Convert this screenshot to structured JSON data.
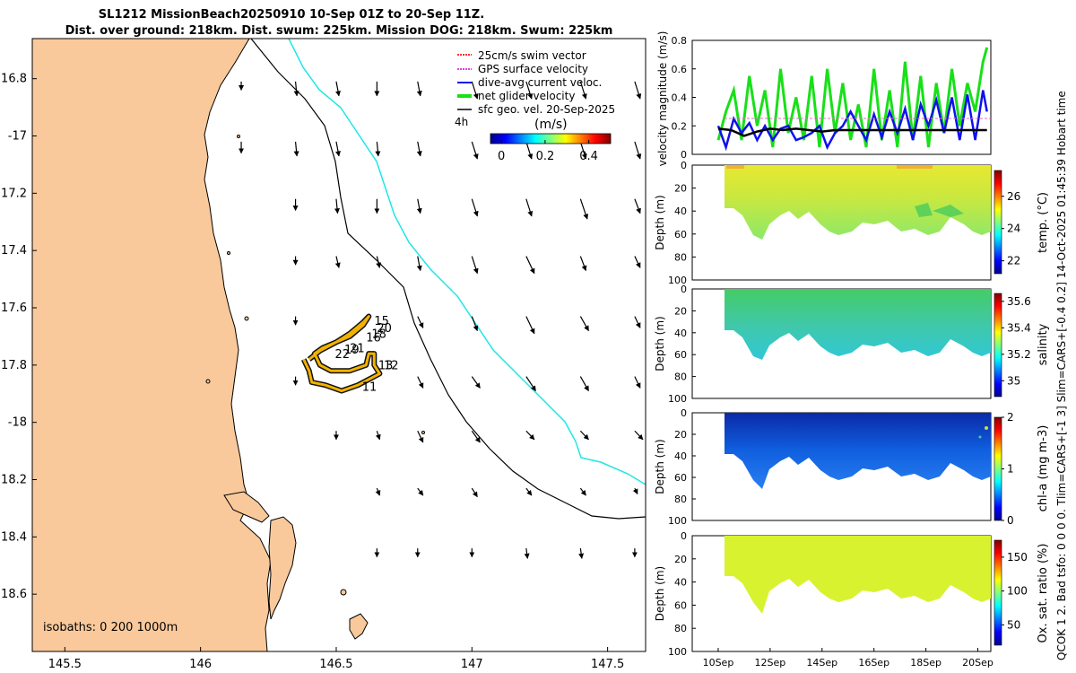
{
  "header": {
    "title_line1": "SL1212 MissionBeach20250910 10-Sep 01Z to 20-Sep 11Z.",
    "title_line2": "Dist. over ground: 218km. Dist. swum: 225km. Mission DOG: 218km. Swum: 225km"
  },
  "side_note": "QCOK 1  2. Bad tsfo: 0  0  0  0. Tlim=CARS+[-1 3] Slim=CARS+[-0.4 0.2] 14-Oct-2025 01:45:39 Hobart time",
  "colors": {
    "land": "#f9c99b",
    "coast": "#000000",
    "isobath_1000": "#20e6e6",
    "isobath_200": "#000000",
    "track_outer": "#111111",
    "track_inner": "#f2b200",
    "swim_vector": "#ff3030",
    "gps_velocity": "#e040e0",
    "current": "#1010ee",
    "net_velocity": "#18e018",
    "geo_velocity": "#000000",
    "mean_speed": "#000000"
  },
  "chart_data": [
    {
      "type": "map",
      "panel": "map",
      "xlabel_ticks": [
        "145.5",
        "146",
        "146.5",
        "147",
        "147.5"
      ],
      "x_tick_values": [
        145.5,
        146.0,
        146.5,
        147.0,
        147.5
      ],
      "ylabel_ticks": [
        "16.8",
        "-17",
        "17.2",
        "17.4",
        "17.6",
        "17.8",
        "-18",
        "18.2",
        "18.4",
        "18.6"
      ],
      "y_tick_values": [
        -16.8,
        -17.0,
        -17.2,
        -17.4,
        -17.6,
        -17.8,
        -18.0,
        -18.2,
        -18.4,
        -18.6
      ],
      "xlim": [
        145.38,
        147.64
      ],
      "ylim": [
        -18.8,
        -16.66
      ],
      "legend": [
        {
          "key": "swim",
          "label": "25cm/s swim vector"
        },
        {
          "key": "gps",
          "label": "GPS surface velocity"
        },
        {
          "key": "current",
          "label": "dive-avg current veloc."
        },
        {
          "key": "net",
          "label": "net glider velocity"
        },
        {
          "key": "geo",
          "label": "sfc geo. vel. 20-Sep-2025"
        }
      ],
      "time_label": "4h",
      "colorbar": {
        "label": "(m/s)",
        "ticks": [
          "0",
          "0.2",
          "0.4"
        ],
        "tick_values": [
          0,
          0.2,
          0.4
        ],
        "range": [
          -0.05,
          0.5
        ]
      },
      "isobath_label": "isobaths: 0   200  1000m",
      "track_day_labels": [
        {
          "text": "15",
          "lon": 146.64,
          "lat": -17.66
        },
        {
          "text": "20",
          "lon": 146.65,
          "lat": -17.685
        },
        {
          "text": "18",
          "lon": 146.63,
          "lat": -17.705
        },
        {
          "text": "16",
          "lon": 146.61,
          "lat": -17.718
        },
        {
          "text": "21",
          "lon": 146.55,
          "lat": -17.755
        },
        {
          "text": "19",
          "lon": 146.53,
          "lat": -17.76
        },
        {
          "text": "22",
          "lon": 146.495,
          "lat": -17.775
        },
        {
          "text": "13",
          "lon": 146.655,
          "lat": -17.815
        },
        {
          "text": "12",
          "lon": 146.675,
          "lat": -17.815
        },
        {
          "text": "11",
          "lon": 146.595,
          "lat": -17.89
        }
      ],
      "track": [
        [
          146.4,
          -17.78
        ],
        [
          146.44,
          -17.75
        ],
        [
          146.5,
          -17.72
        ],
        [
          146.55,
          -17.7
        ],
        [
          146.6,
          -17.66
        ],
        [
          146.62,
          -17.63
        ],
        [
          146.6,
          -17.65
        ],
        [
          146.55,
          -17.69
        ],
        [
          146.5,
          -17.72
        ],
        [
          146.45,
          -17.74
        ],
        [
          146.42,
          -17.76
        ],
        [
          146.44,
          -17.8
        ],
        [
          146.48,
          -17.82
        ],
        [
          146.55,
          -17.82
        ],
        [
          146.61,
          -17.8
        ],
        [
          146.62,
          -17.76
        ],
        [
          146.64,
          -17.76
        ],
        [
          146.64,
          -17.8
        ],
        [
          146.66,
          -17.83
        ],
        [
          146.62,
          -17.85
        ],
        [
          146.58,
          -17.87
        ],
        [
          146.52,
          -17.89
        ],
        [
          146.46,
          -17.87
        ],
        [
          146.41,
          -17.86
        ],
        [
          146.4,
          -17.82
        ],
        [
          146.38,
          -17.78
        ]
      ],
      "geo_vectors": [
        [
          146.15,
          -16.81,
          0.0,
          -0.03
        ],
        [
          146.35,
          -16.81,
          0.005,
          -0.05
        ],
        [
          146.5,
          -16.81,
          0.01,
          -0.05
        ],
        [
          146.65,
          -16.81,
          0.0,
          -0.05
        ],
        [
          146.8,
          -16.81,
          0.01,
          -0.05
        ],
        [
          147.0,
          -16.81,
          0.02,
          -0.06
        ],
        [
          147.2,
          -16.81,
          0.02,
          -0.06
        ],
        [
          147.4,
          -16.81,
          0.02,
          -0.06
        ],
        [
          147.6,
          -16.81,
          0.02,
          -0.06
        ],
        [
          146.15,
          -17.02,
          0.0,
          -0.04
        ],
        [
          146.35,
          -17.02,
          0.005,
          -0.05
        ],
        [
          146.5,
          -17.02,
          0.01,
          -0.05
        ],
        [
          146.65,
          -17.02,
          0.005,
          -0.05
        ],
        [
          146.8,
          -17.02,
          0.01,
          -0.05
        ],
        [
          147.0,
          -17.02,
          0.02,
          -0.06
        ],
        [
          147.2,
          -17.02,
          0.02,
          -0.06
        ],
        [
          147.4,
          -17.02,
          0.02,
          -0.06
        ],
        [
          147.6,
          -17.02,
          0.02,
          -0.06
        ],
        [
          146.35,
          -17.22,
          0.0,
          -0.04
        ],
        [
          146.5,
          -17.22,
          0.005,
          -0.05
        ],
        [
          146.65,
          -17.22,
          0.0,
          -0.05
        ],
        [
          146.8,
          -17.22,
          0.01,
          -0.05
        ],
        [
          147.0,
          -17.22,
          0.02,
          -0.06
        ],
        [
          147.2,
          -17.22,
          0.02,
          -0.06
        ],
        [
          147.4,
          -17.22,
          0.025,
          -0.07
        ],
        [
          147.6,
          -17.22,
          0.02,
          -0.05
        ],
        [
          146.35,
          -17.42,
          0.0,
          -0.03
        ],
        [
          146.5,
          -17.42,
          0.01,
          -0.04
        ],
        [
          146.65,
          -17.42,
          0.01,
          -0.04
        ],
        [
          146.8,
          -17.42,
          0.01,
          -0.05
        ],
        [
          147.0,
          -17.42,
          0.02,
          -0.06
        ],
        [
          147.2,
          -17.42,
          0.03,
          -0.06
        ],
        [
          147.4,
          -17.42,
          0.02,
          -0.05
        ],
        [
          147.6,
          -17.42,
          0.02,
          -0.04
        ],
        [
          146.35,
          -17.63,
          0.0,
          -0.03
        ],
        [
          146.8,
          -17.63,
          0.02,
          -0.04
        ],
        [
          147.0,
          -17.63,
          0.02,
          -0.05
        ],
        [
          147.2,
          -17.63,
          0.03,
          -0.06
        ],
        [
          147.4,
          -17.63,
          0.03,
          -0.05
        ],
        [
          147.6,
          -17.63,
          0.02,
          -0.04
        ],
        [
          146.35,
          -17.84,
          0.0,
          -0.03
        ],
        [
          146.8,
          -17.84,
          0.02,
          -0.04
        ],
        [
          147.0,
          -17.84,
          0.03,
          -0.04
        ],
        [
          147.2,
          -17.84,
          0.035,
          -0.05
        ],
        [
          147.4,
          -17.84,
          0.03,
          -0.05
        ],
        [
          147.6,
          -17.84,
          0.02,
          -0.04
        ],
        [
          146.5,
          -18.03,
          0.0,
          -0.03
        ],
        [
          146.65,
          -18.03,
          0.01,
          -0.03
        ],
        [
          146.8,
          -18.03,
          0.02,
          -0.04
        ],
        [
          147.0,
          -18.03,
          0.03,
          -0.04
        ],
        [
          147.2,
          -18.03,
          0.03,
          -0.03
        ],
        [
          147.4,
          -18.03,
          0.03,
          -0.03
        ],
        [
          147.6,
          -18.03,
          0.03,
          -0.03
        ],
        [
          146.65,
          -18.23,
          0.01,
          -0.025
        ],
        [
          146.8,
          -18.23,
          0.02,
          -0.025
        ],
        [
          147.0,
          -18.23,
          0.02,
          -0.03
        ],
        [
          147.2,
          -18.23,
          0.02,
          -0.025
        ],
        [
          147.4,
          -18.23,
          0.02,
          -0.025
        ],
        [
          147.6,
          -18.23,
          0.01,
          -0.02
        ],
        [
          146.65,
          -18.44,
          0.0,
          -0.03
        ],
        [
          146.8,
          -18.44,
          0.0,
          -0.03
        ],
        [
          147.0,
          -18.44,
          0.0,
          -0.03
        ],
        [
          147.2,
          -18.44,
          0.005,
          -0.035
        ],
        [
          147.4,
          -18.44,
          0.005,
          -0.035
        ],
        [
          147.6,
          -18.44,
          0.0,
          -0.03
        ]
      ]
    },
    {
      "type": "line",
      "panel": "velocity",
      "ylabel": "velocity magnitude (m/s)",
      "ylim": [
        0,
        0.8
      ],
      "yticks": [
        "0",
        "0.2",
        "0.4",
        "0.6",
        "0.8"
      ],
      "ytick_values": [
        0,
        0.2,
        0.4,
        0.6,
        0.8
      ],
      "xlim": [
        9.0,
        20.5
      ],
      "series": [
        {
          "name": "net glider velocity",
          "x": [
            10.0,
            10.3,
            10.6,
            10.9,
            11.2,
            11.5,
            11.8,
            12.1,
            12.4,
            12.7,
            13.0,
            13.3,
            13.6,
            13.9,
            14.2,
            14.5,
            14.8,
            15.1,
            15.4,
            15.7,
            16.0,
            16.3,
            16.6,
            16.9,
            17.2,
            17.5,
            17.8,
            18.1,
            18.4,
            18.7,
            19.0,
            19.3,
            19.6,
            19.9,
            20.2,
            20.35
          ],
          "values": [
            0.1,
            0.3,
            0.45,
            0.1,
            0.55,
            0.2,
            0.45,
            0.05,
            0.6,
            0.15,
            0.4,
            0.1,
            0.55,
            0.05,
            0.6,
            0.15,
            0.5,
            0.1,
            0.35,
            0.05,
            0.6,
            0.1,
            0.45,
            0.05,
            0.65,
            0.1,
            0.55,
            0.05,
            0.5,
            0.15,
            0.6,
            0.2,
            0.5,
            0.3,
            0.65,
            0.75
          ]
        },
        {
          "name": "dive-avg current veloc.",
          "x": [
            10.0,
            10.3,
            10.6,
            10.9,
            11.2,
            11.5,
            11.8,
            12.1,
            12.4,
            12.7,
            13.0,
            13.3,
            13.6,
            13.9,
            14.2,
            14.5,
            14.8,
            15.1,
            15.4,
            15.7,
            16.0,
            16.3,
            16.6,
            16.9,
            17.2,
            17.5,
            17.8,
            18.1,
            18.4,
            18.7,
            19.0,
            19.3,
            19.6,
            19.9,
            20.2,
            20.35
          ],
          "values": [
            0.2,
            0.05,
            0.25,
            0.15,
            0.22,
            0.1,
            0.2,
            0.1,
            0.18,
            0.2,
            0.1,
            0.12,
            0.15,
            0.2,
            0.05,
            0.15,
            0.2,
            0.3,
            0.2,
            0.1,
            0.28,
            0.12,
            0.3,
            0.15,
            0.32,
            0.1,
            0.35,
            0.2,
            0.38,
            0.15,
            0.4,
            0.1,
            0.42,
            0.1,
            0.45,
            0.3
          ]
        },
        {
          "name": "mean speed",
          "x": [
            10.0,
            10.5,
            11.0,
            11.5,
            12.0,
            12.5,
            13.0,
            13.5,
            14.0,
            14.5,
            15.0,
            15.5,
            16.0,
            16.5,
            17.0,
            17.5,
            18.0,
            18.5,
            19.0,
            19.5,
            20.0,
            20.35
          ],
          "values": [
            0.18,
            0.17,
            0.13,
            0.16,
            0.18,
            0.17,
            0.18,
            0.17,
            0.16,
            0.17,
            0.17,
            0.17,
            0.17,
            0.17,
            0.17,
            0.17,
            0.17,
            0.17,
            0.17,
            0.17,
            0.17,
            0.17
          ]
        }
      ]
    },
    {
      "type": "heatmap",
      "panel": "temperature",
      "ylabel": "Depth (m)",
      "clabel": "temp. (°C)",
      "yticks": [
        "0",
        "20",
        "40",
        "60",
        "80",
        "100"
      ],
      "ytick_values": [
        0,
        20,
        40,
        60,
        80,
        100
      ],
      "cticks": [
        "22",
        "24",
        "26"
      ],
      "ctick_values": [
        22,
        24,
        26
      ],
      "clim": [
        21.2,
        27.6
      ]
    },
    {
      "type": "heatmap",
      "panel": "salinity",
      "ylabel": "Depth (m)",
      "clabel": "salinity",
      "yticks": [
        "0",
        "20",
        "40",
        "60",
        "80",
        "100"
      ],
      "ytick_values": [
        0,
        20,
        40,
        60,
        80,
        100
      ],
      "cticks": [
        "35",
        "35.2",
        "35.4",
        "35.6"
      ],
      "ctick_values": [
        35.0,
        35.2,
        35.4,
        35.6
      ],
      "clim": [
        34.88,
        35.66
      ]
    },
    {
      "type": "heatmap",
      "panel": "chla",
      "ylabel": "Depth (m)",
      "clabel": "chl-a  (mg m-3)",
      "yticks": [
        "0",
        "20",
        "40",
        "60",
        "80",
        "100"
      ],
      "ytick_values": [
        0,
        20,
        40,
        60,
        80,
        100
      ],
      "cticks": [
        "0",
        "1",
        "2"
      ],
      "ctick_values": [
        0,
        1,
        2
      ],
      "clim": [
        0,
        2
      ]
    },
    {
      "type": "heatmap",
      "panel": "oxygen",
      "ylabel": "Depth (m)",
      "clabel": "Ox. sat. ratio (%)",
      "yticks": [
        "0",
        "20",
        "40",
        "60",
        "80",
        "100"
      ],
      "ytick_values": [
        0,
        20,
        40,
        60,
        80,
        100
      ],
      "cticks": [
        "50",
        "100",
        "150"
      ],
      "ctick_values": [
        50,
        100,
        150
      ],
      "clim": [
        20,
        175
      ],
      "xticks": [
        "10Sep",
        "12Sep",
        "14Sep",
        "16Sep",
        "18Sep",
        "20Sep"
      ],
      "xtick_values": [
        10,
        12,
        14,
        16,
        18,
        20
      ]
    }
  ]
}
